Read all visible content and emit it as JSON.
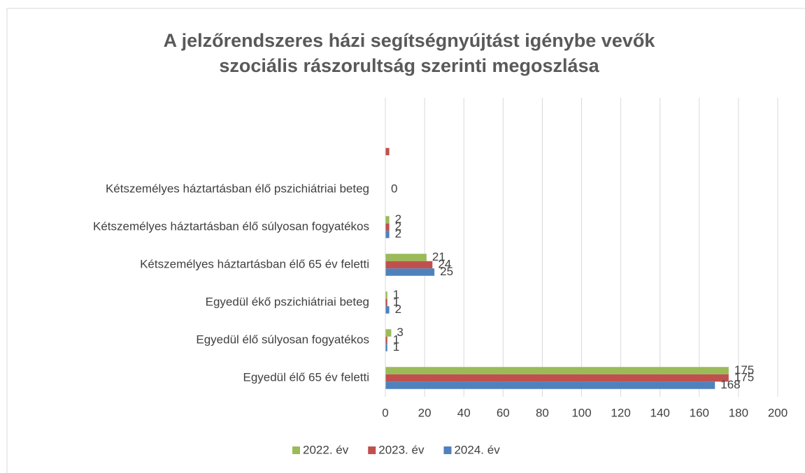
{
  "chart_data": {
    "type": "barh",
    "title": [
      "A jelzőrendszeres házi segítségnyújtást igénybe vevők",
      "szociális rászorultság szerinti megoszlása"
    ],
    "categories": [
      "Egyedül élő 65 év feletti",
      "Egyedül élő súlyosan fogyatékos",
      "Egyedül ékő pszichiátriai beteg",
      "Kétszemélyes háztartásban élő 65 év feletti",
      "Kétszemélyes háztartásban élő súlyosan fogyatékos",
      "Kétszemélyes háztartásban élő pszichiátriai beteg",
      null
    ],
    "series": [
      {
        "name": "2022. év",
        "color": "#9bbb59",
        "values": [
          175,
          3,
          1,
          21,
          2,
          null,
          null
        ],
        "value_labels": [
          "175",
          "3",
          "1",
          "21",
          "2",
          null,
          null
        ]
      },
      {
        "name": "2023. év",
        "color": "#c0504d",
        "values": [
          175,
          1,
          1,
          24,
          2,
          0,
          2
        ],
        "value_labels": [
          "175",
          "1",
          "1",
          "24",
          "2",
          "0",
          null
        ]
      },
      {
        "name": "2024. év",
        "color": "#4f81bd",
        "values": [
          168,
          1,
          2,
          25,
          2,
          null,
          null
        ],
        "value_labels": [
          "168",
          "1",
          "2",
          "25",
          "2",
          null,
          null
        ]
      }
    ],
    "xlim": [
      0,
      200
    ],
    "xticks": [
      0,
      20,
      40,
      60,
      80,
      100,
      120,
      140,
      160,
      180,
      200
    ],
    "grid": true,
    "legend": "bottom"
  }
}
